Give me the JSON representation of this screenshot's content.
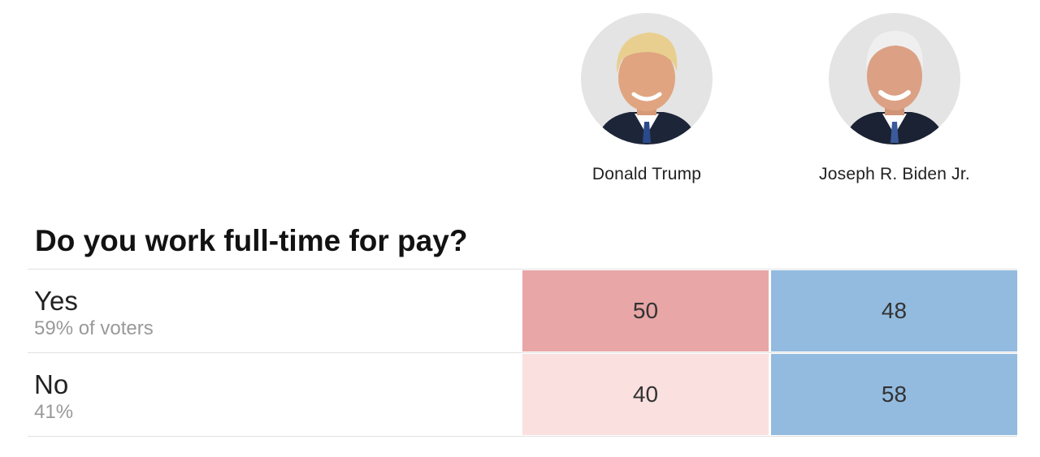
{
  "candidates": [
    {
      "name": "Donald Trump",
      "color": "#e8a6a6"
    },
    {
      "name": "Joseph R. Biden Jr.",
      "color": "#93bbe0"
    }
  ],
  "question": "Do you work full-time for pay?",
  "rows": [
    {
      "label": "Yes",
      "share": "59% of voters",
      "values": [
        "50",
        "48"
      ],
      "colors": [
        "#e8a6a6",
        "#93bbe0"
      ]
    },
    {
      "label": "No",
      "share": "41%",
      "values": [
        "40",
        "58"
      ],
      "colors": [
        "#fbe0e0",
        "#93bbe0"
      ]
    }
  ],
  "chart_data": {
    "type": "table",
    "title": "Do you work full-time for pay?",
    "columns": [
      "Donald Trump",
      "Joseph R. Biden Jr."
    ],
    "categories": [
      "Yes",
      "No"
    ],
    "category_shares": [
      "59% of voters",
      "41%"
    ],
    "series": [
      {
        "name": "Donald Trump",
        "values": [
          50,
          40
        ]
      },
      {
        "name": "Joseph R. Biden Jr.",
        "values": [
          48,
          58
        ]
      }
    ]
  }
}
